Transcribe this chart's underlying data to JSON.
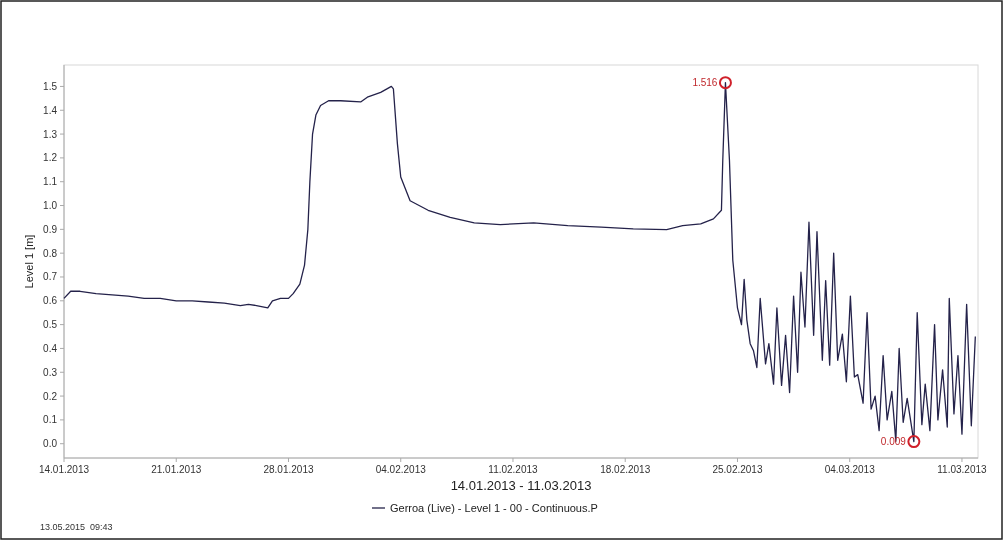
{
  "chart_data": {
    "type": "line",
    "xlabel": "14.01.2013 - 11.03.2013",
    "ylabel": "Level 1 [m]",
    "legend": "bottom",
    "grid": false,
    "xlim": [
      "2013-01-14",
      "2013-03-12"
    ],
    "ylim": [
      -0.06,
      1.59
    ],
    "xticks": [
      {
        "value": "2013-01-14",
        "label": "14.01.2013"
      },
      {
        "value": "2013-01-21",
        "label": "21.01.2013"
      },
      {
        "value": "2013-01-28",
        "label": "28.01.2013"
      },
      {
        "value": "2013-02-04",
        "label": "04.02.2013"
      },
      {
        "value": "2013-02-11",
        "label": "11.02.2013"
      },
      {
        "value": "2013-02-18",
        "label": "18.02.2013"
      },
      {
        "value": "2013-02-25",
        "label": "25.02.2013"
      },
      {
        "value": "2013-03-04",
        "label": "04.03.2013"
      },
      {
        "value": "2013-03-11",
        "label": "11.03.2013"
      }
    ],
    "yticks": [
      {
        "value": 0,
        "label": "0.0"
      },
      0.1,
      0.2,
      0.3,
      0.4,
      0.5,
      0.6,
      0.7,
      0.8,
      0.9,
      {
        "value": 1,
        "label": "1.0"
      },
      1.1,
      1.2,
      1.3,
      1.4,
      1.5
    ],
    "annotations": [
      {
        "text": "1.516",
        "x": "2013-02-24T06:00",
        "y": 1.516
      },
      {
        "text": "0.009",
        "x": "2013-03-08T00:00",
        "y": 0.009
      },
      "13.05.2015  09:43"
    ],
    "x": [
      "2013-01-14T00:00",
      "2013-01-14T10:00",
      "2013-01-15T00:00",
      "2013-01-16T00:00",
      "2013-01-17T00:00",
      "2013-01-18T00:00",
      "2013-01-19T00:00",
      "2013-01-20T00:00",
      "2013-01-21T00:00",
      "2013-01-22T00:00",
      "2013-01-23T00:00",
      "2013-01-24T00:00",
      "2013-01-25T00:00",
      "2013-01-25T12:00",
      "2013-01-26T00:00",
      "2013-01-26T17:00",
      "2013-01-27T00:00",
      "2013-01-27T12:00",
      "2013-01-28T00:00",
      "2013-01-28T07:00",
      "2013-01-28T17:00",
      "2013-01-29T00:00",
      "2013-01-29T05:00",
      "2013-01-29T08:00",
      "2013-01-29T12:00",
      "2013-01-29T17:00",
      "2013-01-30T00:00",
      "2013-01-30T12:00",
      "2013-01-31T06:00",
      "2013-02-01T12:00",
      "2013-02-01T22:00",
      "2013-02-02T18:00",
      "2013-02-03T10:00",
      "2013-02-03T13:00",
      "2013-02-03T19:00",
      "2013-02-04T00:00",
      "2013-02-04T14:00",
      "2013-02-05T17:00",
      "2013-02-07T02:00",
      "2013-02-08T14:00",
      "2013-02-10T05:00",
      "2013-02-12T07:00",
      "2013-02-14T10:00",
      "2013-02-16T12:00",
      "2013-02-18T12:00",
      "2013-02-20T14:00",
      "2013-02-21T14:00",
      "2013-02-22T17:00",
      "2013-02-23T12:00",
      "2013-02-24T00:00",
      "2013-02-24T02:00",
      "2013-02-24T06:00",
      "2013-02-24T12:00",
      "2013-02-24T17:00",
      "2013-02-25T00:00",
      "2013-02-25T06:00",
      "2013-02-25T10:00",
      "2013-02-25T14:00",
      "2013-02-25T19:00",
      "2013-02-26T00:00",
      "2013-02-26T05:00",
      "2013-02-26T10:00",
      "2013-02-26T18:00",
      "2013-02-26T23:00",
      "2013-02-27T06:00",
      "2013-02-27T11:00",
      "2013-02-27T18:00",
      "2013-02-28T00:00",
      "2013-02-28T06:00",
      "2013-02-28T12:00",
      "2013-02-28T18:00",
      "2013-02-28T23:00",
      "2013-03-01T05:00",
      "2013-03-01T11:00",
      "2013-03-01T18:00",
      "2013-03-01T23:00",
      "2013-03-02T07:00",
      "2013-03-02T12:00",
      "2013-03-02T18:00",
      "2013-03-03T00:00",
      "2013-03-03T06:00",
      "2013-03-03T13:00",
      "2013-03-03T19:00",
      "2013-03-04T01:00",
      "2013-03-04T07:00",
      "2013-03-04T12:00",
      "2013-03-04T20:00",
      "2013-03-05T02:00",
      "2013-03-05T08:00",
      "2013-03-05T14:00",
      "2013-03-05T20:00",
      "2013-03-06T02:00",
      "2013-03-06T08:00",
      "2013-03-06T15:00",
      "2013-03-06T21:00",
      "2013-03-07T02:00",
      "2013-03-07T08:00",
      "2013-03-07T14:00",
      "2013-03-08T00:00",
      "2013-03-08T05:00",
      "2013-03-08T12:00",
      "2013-03-08T17:00",
      "2013-03-09T00:00",
      "2013-03-09T07:00",
      "2013-03-09T12:00",
      "2013-03-09T19:00",
      "2013-03-10T02:00",
      "2013-03-10T05:00",
      "2013-03-10T12:00",
      "2013-03-10T18:00",
      "2013-03-11T00:00",
      "2013-03-11T07:00",
      "2013-03-11T14:00",
      "2013-03-11T20:00"
    ],
    "series": [
      {
        "name": "Gerroa (Live) - Level 1 - 00 - Continuous.P",
        "color": "#24224a",
        "values": [
          0.61,
          0.64,
          0.64,
          0.63,
          0.625,
          0.62,
          0.61,
          0.61,
          0.6,
          0.6,
          0.595,
          0.59,
          0.58,
          0.585,
          0.58,
          0.57,
          0.6,
          0.61,
          0.61,
          0.63,
          0.67,
          0.75,
          0.9,
          1.1,
          1.3,
          1.38,
          1.42,
          1.44,
          1.44,
          1.435,
          1.455,
          1.475,
          1.5,
          1.49,
          1.26,
          1.12,
          1.02,
          0.98,
          0.95,
          0.927,
          0.92,
          0.927,
          0.916,
          0.909,
          0.902,
          0.899,
          0.916,
          0.923,
          0.944,
          0.98,
          1.19,
          1.516,
          1.19,
          0.77,
          0.57,
          0.5,
          0.69,
          0.52,
          0.42,
          0.39,
          0.32,
          0.61,
          0.335,
          0.42,
          0.25,
          0.57,
          0.245,
          0.455,
          0.215,
          0.62,
          0.3,
          0.72,
          0.49,
          0.93,
          0.455,
          0.89,
          0.35,
          0.685,
          0.33,
          0.8,
          0.35,
          0.46,
          0.26,
          0.62,
          0.28,
          0.29,
          0.17,
          0.55,
          0.145,
          0.2,
          0.055,
          0.37,
          0.1,
          0.22,
          0.01,
          0.4,
          0.09,
          0.19,
          0.009,
          0.55,
          0.08,
          0.25,
          0.055,
          0.5,
          0.1,
          0.31,
          0.07,
          0.61,
          0.125,
          0.37,
          0.04,
          0.585,
          0.075,
          0.45
        ]
      }
    ]
  }
}
